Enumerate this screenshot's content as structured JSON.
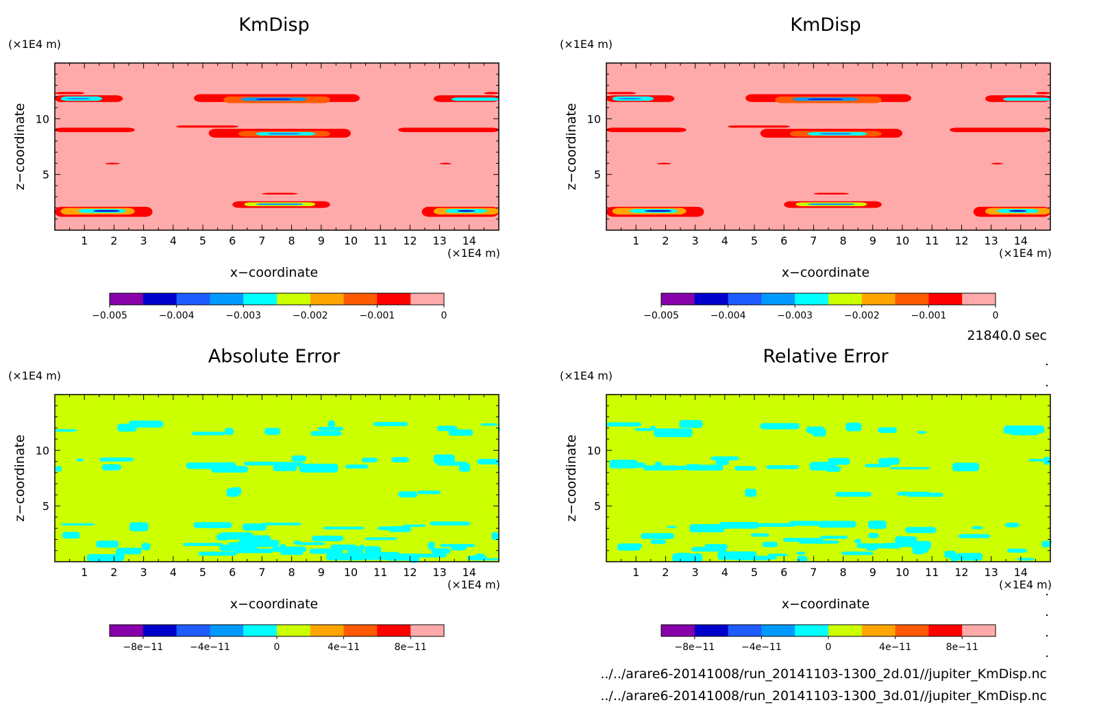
{
  "panels": [
    {
      "title": "KmDisp",
      "ylabel": "z−coordinate",
      "xlabel": "x−coordinate",
      "x_unit": "(×1E4 m)",
      "y_unit": "(×1E4 m)",
      "field": "kmdisp",
      "colorbar_ticks": [
        "−0.005",
        "−0.004",
        "−0.003",
        "−0.002",
        "−0.001",
        "0"
      ]
    },
    {
      "title": "KmDisp",
      "ylabel": "z−coordinate",
      "xlabel": "x−coordinate",
      "x_unit": "(×1E4 m)",
      "y_unit": "(×1E4 m)",
      "field": "kmdisp",
      "colorbar_ticks": [
        "−0.005",
        "−0.004",
        "−0.003",
        "−0.002",
        "−0.001",
        "0"
      ]
    },
    {
      "title": "Absolute Error",
      "ylabel": "z−coordinate",
      "xlabel": "x−coordinate",
      "x_unit": "(×1E4 m)",
      "y_unit": "(×1E4 m)",
      "field": "abs_error",
      "colorbar_ticks": [
        "−8e−11",
        "−4e−11",
        "0",
        "4e−11",
        "8e−11"
      ]
    },
    {
      "title": "Relative Error",
      "ylabel": "z−coordinate",
      "xlabel": "x−coordinate",
      "x_unit": "(×1E4 m)",
      "y_unit": "(×1E4 m)",
      "field": "rel_error",
      "colorbar_ticks": [
        "−8e−11",
        "−4e−11",
        "0",
        "4e−11",
        "8e−11"
      ]
    }
  ],
  "time_label": "21840.0 sec",
  "files": [
    "../../arare6-20141008/run_20141103-1300_2d.01//jupiter_KmDisp.nc",
    "../../arare6-20141008/run_20141103-1300_3d.01//jupiter_KmDisp.nc"
  ],
  "chart_data": {
    "type": "heatmap",
    "x_ticks": [
      1,
      2,
      3,
      4,
      5,
      6,
      7,
      8,
      9,
      10,
      11,
      12,
      13,
      14
    ],
    "y_ticks": [
      5,
      10
    ],
    "xlim": [
      0,
      15
    ],
    "ylim": [
      0,
      15
    ],
    "colorbar_colors": [
      "#8800aa",
      "#0000cc",
      "#1f5cff",
      "#0099ff",
      "#00ffff",
      "#ccff00",
      "#ffa500",
      "#ff5a00",
      "#ff0000",
      "#ffaaaa"
    ],
    "kmdisp_colorbar_range": [
      -0.005,
      0
    ],
    "error_colorbar_range": [
      -1e-10,
      1e-10
    ],
    "kmdisp_background": "#ffaaaa",
    "error_background": "#ccff00",
    "kmdisp_features": [
      {
        "x": [
          0,
          1.0
        ],
        "z": [
          12.2,
          12.4
        ],
        "level": 8
      },
      {
        "x": [
          0,
          2.3
        ],
        "z": [
          11.5,
          12.1
        ],
        "level": 8
      },
      {
        "x": [
          0.2,
          1.6
        ],
        "z": [
          11.6,
          12.0
        ],
        "level": 4
      },
      {
        "x": [
          0.4,
          1.2
        ],
        "z": [
          11.75,
          11.85
        ],
        "level": 2
      },
      {
        "x": [
          4.7,
          10.3
        ],
        "z": [
          11.5,
          12.2
        ],
        "level": 8
      },
      {
        "x": [
          5.7,
          9.3
        ],
        "z": [
          11.4,
          12.0
        ],
        "level": 7
      },
      {
        "x": [
          6.3,
          8.5
        ],
        "z": [
          11.6,
          11.9
        ],
        "level": 3
      },
      {
        "x": [
          6.8,
          8.0
        ],
        "z": [
          11.7,
          11.8
        ],
        "level": 1
      },
      {
        "x": [
          12.8,
          15
        ],
        "z": [
          11.5,
          12.1
        ],
        "level": 8
      },
      {
        "x": [
          13.4,
          15
        ],
        "z": [
          11.6,
          11.9
        ],
        "level": 4
      },
      {
        "x": [
          14.5,
          15
        ],
        "z": [
          12.2,
          12.4
        ],
        "level": 8
      },
      {
        "x": [
          0,
          2.7
        ],
        "z": [
          8.8,
          9.2
        ],
        "level": 8
      },
      {
        "x": [
          4.1,
          6.2
        ],
        "z": [
          9.2,
          9.4
        ],
        "level": 8
      },
      {
        "x": [
          5.2,
          10.0
        ],
        "z": [
          8.3,
          9.1
        ],
        "level": 8
      },
      {
        "x": [
          6.2,
          9.3
        ],
        "z": [
          8.4,
          8.9
        ],
        "level": 7
      },
      {
        "x": [
          6.8,
          8.8
        ],
        "z": [
          8.5,
          8.8
        ],
        "level": 4
      },
      {
        "x": [
          7.2,
          8.3
        ],
        "z": [
          8.6,
          8.7
        ],
        "level": 2
      },
      {
        "x": [
          11.6,
          15
        ],
        "z": [
          8.8,
          9.2
        ],
        "level": 8
      },
      {
        "x": [
          1.7,
          2.2
        ],
        "z": [
          5.9,
          6.05
        ],
        "level": 8
      },
      {
        "x": [
          13.0,
          13.4
        ],
        "z": [
          5.9,
          6.05
        ],
        "level": 8
      },
      {
        "x": [
          7.0,
          8.2
        ],
        "z": [
          3.2,
          3.35
        ],
        "level": 8
      },
      {
        "x": [
          6.0,
          9.3
        ],
        "z": [
          2.0,
          2.6
        ],
        "level": 8
      },
      {
        "x": [
          6.4,
          8.8
        ],
        "z": [
          2.15,
          2.5
        ],
        "level": 5
      },
      {
        "x": [
          6.8,
          8.4
        ],
        "z": [
          2.25,
          2.4
        ],
        "level": 3
      },
      {
        "x": [
          0,
          3.3
        ],
        "z": [
          1.2,
          2.1
        ],
        "level": 8
      },
      {
        "x": [
          0.2,
          2.7
        ],
        "z": [
          1.4,
          2.0
        ],
        "level": 6
      },
      {
        "x": [
          0.8,
          2.4
        ],
        "z": [
          1.55,
          1.9
        ],
        "level": 4
      },
      {
        "x": [
          1.3,
          2.2
        ],
        "z": [
          1.65,
          1.8
        ],
        "level": 1
      },
      {
        "x": [
          12.4,
          15
        ],
        "z": [
          1.2,
          2.1
        ],
        "level": 8
      },
      {
        "x": [
          12.8,
          15
        ],
        "z": [
          1.4,
          2.0
        ],
        "level": 6
      },
      {
        "x": [
          13.2,
          14.6
        ],
        "z": [
          1.55,
          1.9
        ],
        "level": 4
      },
      {
        "x": [
          13.6,
          14.2
        ],
        "z": [
          1.65,
          1.8
        ],
        "level": 1
      }
    ]
  }
}
